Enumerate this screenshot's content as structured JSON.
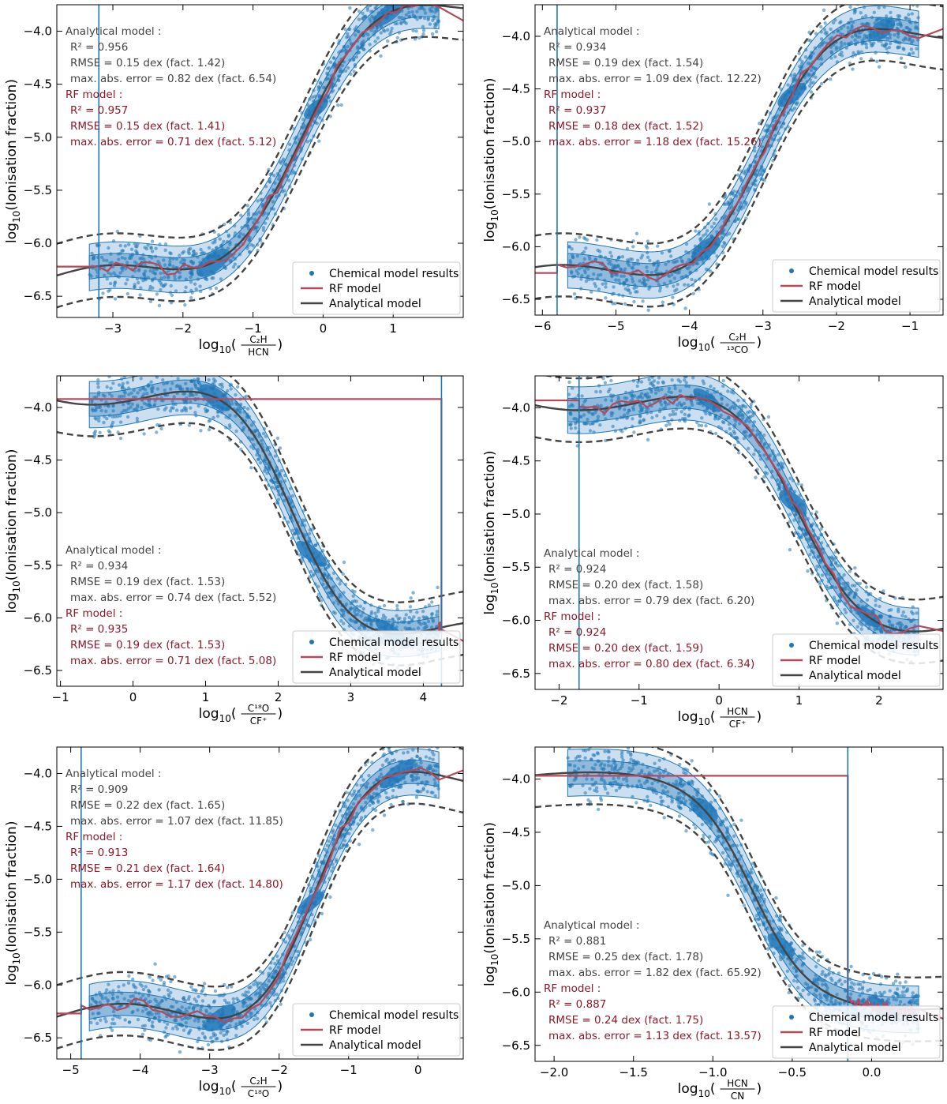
{
  "figure_title": "",
  "chart_data": [
    {
      "type": "scatter",
      "panel": "top-left",
      "xlabel": "log10(C2H/HCN)",
      "ylabel": "log10(Ionisation fraction)",
      "xlim": [
        -3.8,
        2.0
      ],
      "ylim": [
        -6.7,
        -3.75
      ],
      "xticks": [
        -3,
        -2,
        -1,
        0,
        1
      ],
      "yticks": [
        -6.5,
        -6.0,
        -5.5,
        -5.0,
        -4.5,
        -4.0
      ],
      "vline": -3.2,
      "rf_flat_left": -6.22,
      "rf_flat_right": -3.9,
      "analytical": {
        "center": -5.0,
        "amp": 1.35,
        "x0": -0.3,
        "scale": 1.15,
        "band": 0.3
      },
      "annotation": {
        "analytical_title": "Analytical model :",
        "analytical_r2": "R² = 0.956",
        "analytical_rmse": "RMSE = 0.15 dex (fact. 1.42)",
        "analytical_max": "max. abs. error = 0.82 dex (fact. 6.54)",
        "rf_title": "RF model :",
        "rf_r2": "R² = 0.957",
        "rf_rmse": "RMSE = 0.15 dex (fact. 1.41)",
        "rf_max": "max. abs. error = 0.71 dex (fact. 5.12)",
        "position": "top-left"
      },
      "legend": {
        "entries": [
          "Chemical model results",
          "RF model",
          "Analytical model"
        ],
        "position": "bottom-right"
      }
    },
    {
      "type": "scatter",
      "panel": "top-right",
      "xlabel": "log10(C2H/13CO)",
      "ylabel": "log10(Ionisation fraction)",
      "xlim": [
        -6.1,
        -0.55
      ],
      "ylim": [
        -6.65,
        -3.7
      ],
      "xticks": [
        -6,
        -5,
        -4,
        -3,
        -2,
        -1
      ],
      "yticks": [
        -6.5,
        -6.0,
        -5.5,
        -5.0,
        -4.5,
        -4.0
      ],
      "vline": -5.8,
      "rf_flat_left": -6.25,
      "rf_flat_right": -3.93,
      "analytical": {
        "center": -5.1,
        "amp": 1.2,
        "x0": -3.0,
        "scale": 0.95,
        "band": 0.3
      },
      "annotation": {
        "analytical_title": "Analytical model :",
        "analytical_r2": "R² = 0.934",
        "analytical_rmse": "RMSE = 0.19 dex (fact. 1.54)",
        "analytical_max": "max. abs. error = 1.09 dex (fact. 12.22)",
        "rf_title": "RF model :",
        "rf_r2": "R² = 0.937",
        "rf_rmse": "RMSE = 0.18 dex (fact. 1.52)",
        "rf_max": "max. abs. error = 1.18 dex (fact. 15.26)",
        "position": "top-left"
      },
      "legend": {
        "entries": [
          "Chemical model results",
          "RF model",
          "Analytical model"
        ],
        "position": "bottom-right"
      }
    },
    {
      "type": "scatter",
      "panel": "middle-left",
      "xlabel": "log10(C18O/CF+)",
      "ylabel": "log10(Ionisation fraction)",
      "xlim": [
        -1.05,
        4.55
      ],
      "ylim": [
        -6.65,
        -3.7
      ],
      "xticks": [
        -1,
        0,
        1,
        2,
        3,
        4
      ],
      "yticks": [
        -6.5,
        -6.0,
        -5.5,
        -5.0,
        -4.5,
        -4.0
      ],
      "vline": 4.25,
      "rf_flat_left": -3.92,
      "rf_flat_right": -6.22,
      "analytical": {
        "center": -5.0,
        "amp": -1.15,
        "x0": 2.2,
        "scale": 0.85,
        "band": 0.3
      },
      "annotation": {
        "analytical_title": "Analytical model :",
        "analytical_r2": "R² = 0.934",
        "analytical_rmse": "RMSE = 0.19 dex (fact. 1.53)",
        "analytical_max": "max. abs. error = 0.74 dex (fact. 5.52)",
        "rf_title": "RF model :",
        "rf_r2": "R² = 0.935",
        "rf_rmse": "RMSE = 0.19 dex (fact. 1.53)",
        "rf_max": "max. abs. error = 0.71 dex (fact. 5.08)",
        "position": "bottom-left"
      },
      "legend": {
        "entries": [
          "Chemical model results",
          "RF model",
          "Analytical model"
        ],
        "position": "bottom-right"
      }
    },
    {
      "type": "scatter",
      "panel": "middle-right",
      "xlabel": "log10(HCN/CF+)",
      "ylabel": "log10(Ionisation fraction)",
      "xlim": [
        -2.3,
        2.8
      ],
      "ylim": [
        -6.65,
        -3.7
      ],
      "xticks": [
        -2,
        -1,
        0,
        1,
        2
      ],
      "yticks": [
        -6.5,
        -6.0,
        -5.5,
        -5.0,
        -4.5,
        -4.0
      ],
      "vline": -1.75,
      "rf_flat_left": -3.93,
      "rf_flat_right": -6.1,
      "analytical": {
        "center": -5.0,
        "amp": -1.1,
        "x0": 1.0,
        "scale": 0.85,
        "band": 0.3
      },
      "annotation": {
        "analytical_title": "Analytical model :",
        "analytical_r2": "R² = 0.924",
        "analytical_rmse": "RMSE = 0.20 dex (fact. 1.58)",
        "analytical_max": "max. abs. error = 0.79 dex (fact. 6.20)",
        "rf_title": "RF model :",
        "rf_r2": "R² = 0.924",
        "rf_rmse": "RMSE = 0.20 dex (fact. 1.59)",
        "rf_max": "max. abs. error = 0.80 dex (fact. 6.34)",
        "position": "bottom-left"
      },
      "legend": {
        "entries": [
          "Chemical model results",
          "RF model",
          "Analytical model"
        ],
        "position": "bottom-right"
      }
    },
    {
      "type": "scatter",
      "panel": "bottom-left",
      "xlabel": "log10(C2H/C18O)",
      "ylabel": "log10(Ionisation fraction)",
      "xlim": [
        -5.2,
        0.65
      ],
      "ylim": [
        -6.7,
        -3.75
      ],
      "xticks": [
        -5,
        -4,
        -3,
        -2,
        -1,
        0
      ],
      "yticks": [
        -6.5,
        -6.0,
        -5.5,
        -5.0,
        -4.5,
        -4.0
      ],
      "vline": -4.85,
      "rf_flat_left": -6.27,
      "rf_flat_right": -3.97,
      "analytical": {
        "center": -5.15,
        "amp": 1.15,
        "x0": -1.5,
        "scale": 0.8,
        "band": 0.3
      },
      "annotation": {
        "analytical_title": "Analytical model :",
        "analytical_r2": "R² = 0.909",
        "analytical_rmse": "RMSE = 0.22 dex (fact. 1.65)",
        "analytical_max": "max. abs. error = 1.07 dex (fact. 11.85)",
        "rf_title": "RF model :",
        "rf_r2": "R² = 0.913",
        "rf_rmse": "RMSE = 0.21 dex (fact. 1.64)",
        "rf_max": "max. abs. error = 1.17 dex (fact. 14.80)",
        "position": "top-left"
      },
      "legend": {
        "entries": [
          "Chemical model results",
          "RF model",
          "Analytical model"
        ],
        "position": "bottom-right"
      }
    },
    {
      "type": "scatter",
      "panel": "bottom-right",
      "xlabel": "log10(HCN/CN)",
      "ylabel": "log10(Ionisation fraction)",
      "xlim": [
        -2.12,
        0.45
      ],
      "ylim": [
        -6.65,
        -3.7
      ],
      "xticks": [
        -2.0,
        -1.5,
        -1.0,
        -0.5,
        0.0
      ],
      "yticks": [
        -6.5,
        -6.0,
        -5.5,
        -5.0,
        -4.5,
        -4.0
      ],
      "vline": -0.15,
      "rf_flat_left": -3.97,
      "rf_flat_right": -6.25,
      "analytical": {
        "center": -5.05,
        "amp": -1.0,
        "x0": -0.75,
        "scale": 0.35,
        "band": 0.3
      },
      "annotation": {
        "analytical_title": "Analytical model :",
        "analytical_r2": "R² = 0.881",
        "analytical_rmse": "RMSE = 0.25 dex (fact. 1.78)",
        "analytical_max": "max. abs. error = 1.82 dex (fact. 65.92)",
        "rf_title": "RF model :",
        "rf_r2": "R² = 0.887",
        "rf_rmse": "RMSE = 0.24 dex (fact. 1.75)",
        "rf_max": "max. abs. error = 1.13 dex (fact. 13.57)",
        "position": "bottom-left"
      },
      "legend": {
        "entries": [
          "Chemical model results",
          "RF model",
          "Analytical model"
        ],
        "position": "bottom-right"
      }
    }
  ],
  "colors": {
    "points": "#1f77b4",
    "contour_light": "#c6dcef",
    "contour_mid": "#7fb0d9",
    "contour_dark": "#2c7fc0",
    "rf": "#b5485d",
    "analytical": "#444444",
    "vline": "#1f77b4",
    "analytical_text": "#444444",
    "rf_text": "#8b1a2b"
  },
  "axis_glyphs": {
    "log_prefix": "log",
    "log_sub": "10",
    "ylabel_text": "(Ionisation fraction)",
    "fractions": [
      {
        "num": "C₂H",
        "den": "HCN"
      },
      {
        "num": "C₂H",
        "den": "¹³CO"
      },
      {
        "num": "C¹⁸O",
        "den": "CF⁺"
      },
      {
        "num": "HCN",
        "den": "CF⁺"
      },
      {
        "num": "C₂H",
        "den": "C¹⁸O"
      },
      {
        "num": "HCN",
        "den": "CN"
      }
    ]
  }
}
